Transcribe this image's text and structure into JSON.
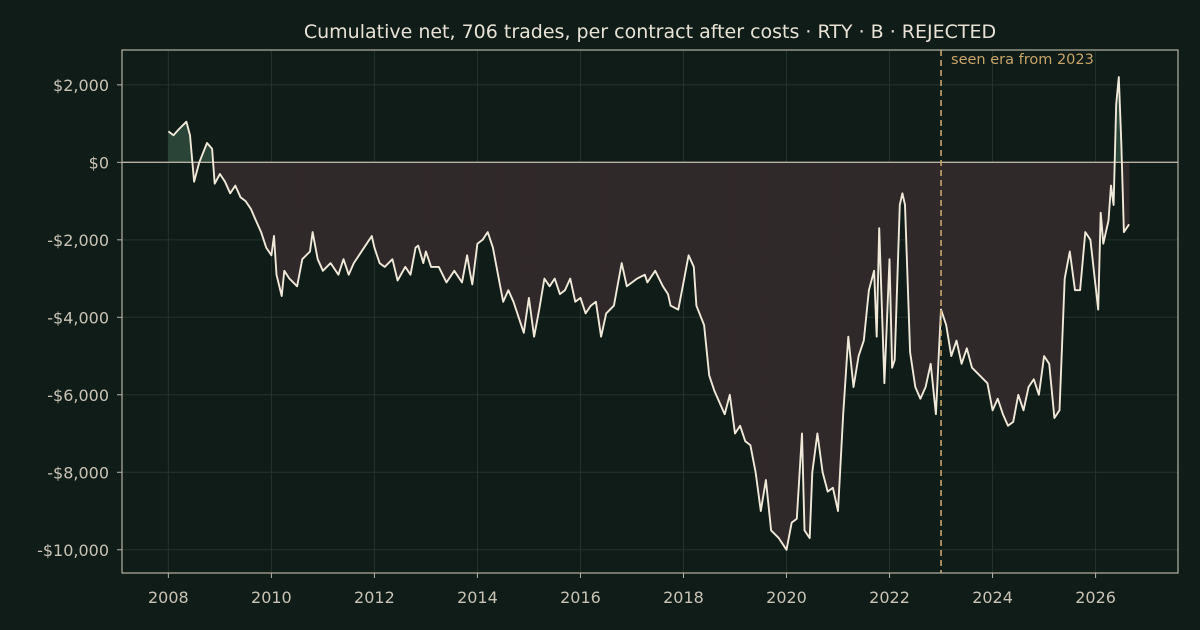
{
  "chart_data": {
    "type": "line",
    "title": "Cumulative net, 706 trades, per contract after costs  ·  RTY · B · REJECTED",
    "xlabel": "",
    "ylabel": "",
    "xlim": [
      2007.1,
      2027.6
    ],
    "ylim": [
      -10600,
      2900
    ],
    "x_ticks": [
      2008,
      2010,
      2012,
      2014,
      2016,
      2018,
      2020,
      2022,
      2024,
      2026
    ],
    "x_tick_labels": [
      "2008",
      "2010",
      "2012",
      "2014",
      "2016",
      "2018",
      "2020",
      "2022",
      "2024",
      "2026"
    ],
    "y_ticks": [
      2000,
      0,
      -2000,
      -4000,
      -6000,
      -8000,
      -10000
    ],
    "y_tick_labels": [
      "$2,000",
      "$0",
      "-$2,000",
      "-$4,000",
      "-$6,000",
      "-$8,000",
      "-$10,000"
    ],
    "grid": true,
    "baseline": 0,
    "annotation": {
      "x": 2023.0,
      "text": "seen era from 2023"
    },
    "colors": {
      "background": "#0f1c17",
      "line": "#f0e8d8",
      "fill_positive": "#2a4438",
      "fill_negative": "#30292a",
      "grid": "#25332c",
      "axis": "#b8b2a5",
      "annotation": "#c8a36a"
    },
    "series": [
      {
        "values": [
          [
            2008.0,
            800
          ],
          [
            2008.1,
            700
          ],
          [
            2008.2,
            850
          ],
          [
            2008.35,
            1050
          ],
          [
            2008.42,
            700
          ],
          [
            2008.5,
            -500
          ],
          [
            2008.6,
            0
          ],
          [
            2008.75,
            500
          ],
          [
            2008.85,
            350
          ],
          [
            2008.9,
            -550
          ],
          [
            2009.0,
            -300
          ],
          [
            2009.1,
            -500
          ],
          [
            2009.2,
            -800
          ],
          [
            2009.3,
            -600
          ],
          [
            2009.4,
            -900
          ],
          [
            2009.5,
            -1000
          ],
          [
            2009.6,
            -1200
          ],
          [
            2009.7,
            -1500
          ],
          [
            2009.8,
            -1800
          ],
          [
            2009.9,
            -2200
          ],
          [
            2010.0,
            -2400
          ],
          [
            2010.05,
            -1900
          ],
          [
            2010.1,
            -2900
          ],
          [
            2010.2,
            -3450
          ],
          [
            2010.25,
            -2800
          ],
          [
            2010.35,
            -3000
          ],
          [
            2010.5,
            -3200
          ],
          [
            2010.6,
            -2500
          ],
          [
            2010.75,
            -2300
          ],
          [
            2010.8,
            -1800
          ],
          [
            2010.9,
            -2500
          ],
          [
            2011.0,
            -2800
          ],
          [
            2011.15,
            -2600
          ],
          [
            2011.3,
            -2900
          ],
          [
            2011.4,
            -2500
          ],
          [
            2011.5,
            -2900
          ],
          [
            2011.6,
            -2600
          ],
          [
            2011.7,
            -2400
          ],
          [
            2011.85,
            -2100
          ],
          [
            2011.95,
            -1900
          ],
          [
            2012.0,
            -2200
          ],
          [
            2012.1,
            -2600
          ],
          [
            2012.2,
            -2700
          ],
          [
            2012.35,
            -2500
          ],
          [
            2012.45,
            -3050
          ],
          [
            2012.6,
            -2700
          ],
          [
            2012.7,
            -2900
          ],
          [
            2012.8,
            -2200
          ],
          [
            2012.85,
            -2150
          ],
          [
            2012.95,
            -2600
          ],
          [
            2013.0,
            -2300
          ],
          [
            2013.1,
            -2700
          ],
          [
            2013.25,
            -2700
          ],
          [
            2013.4,
            -3100
          ],
          [
            2013.55,
            -2800
          ],
          [
            2013.7,
            -3100
          ],
          [
            2013.8,
            -2400
          ],
          [
            2013.85,
            -2800
          ],
          [
            2013.9,
            -3150
          ],
          [
            2014.0,
            -2100
          ],
          [
            2014.1,
            -2000
          ],
          [
            2014.2,
            -1800
          ],
          [
            2014.3,
            -2200
          ],
          [
            2014.4,
            -2900
          ],
          [
            2014.5,
            -3600
          ],
          [
            2014.6,
            -3300
          ],
          [
            2014.7,
            -3600
          ],
          [
            2014.85,
            -4200
          ],
          [
            2014.9,
            -4400
          ],
          [
            2015.0,
            -3500
          ],
          [
            2015.1,
            -4500
          ],
          [
            2015.2,
            -3800
          ],
          [
            2015.3,
            -3000
          ],
          [
            2015.4,
            -3200
          ],
          [
            2015.5,
            -3000
          ],
          [
            2015.6,
            -3400
          ],
          [
            2015.7,
            -3300
          ],
          [
            2015.8,
            -3000
          ],
          [
            2015.9,
            -3600
          ],
          [
            2016.0,
            -3500
          ],
          [
            2016.1,
            -3900
          ],
          [
            2016.2,
            -3700
          ],
          [
            2016.3,
            -3600
          ],
          [
            2016.4,
            -4500
          ],
          [
            2016.5,
            -3900
          ],
          [
            2016.65,
            -3700
          ],
          [
            2016.8,
            -2600
          ],
          [
            2016.9,
            -3200
          ],
          [
            2017.1,
            -3000
          ],
          [
            2017.25,
            -2900
          ],
          [
            2017.3,
            -3100
          ],
          [
            2017.45,
            -2800
          ],
          [
            2017.6,
            -3200
          ],
          [
            2017.7,
            -3400
          ],
          [
            2017.75,
            -3700
          ],
          [
            2017.9,
            -3800
          ],
          [
            2018.0,
            -3100
          ],
          [
            2018.1,
            -2400
          ],
          [
            2018.2,
            -2700
          ],
          [
            2018.25,
            -3700
          ],
          [
            2018.4,
            -4200
          ],
          [
            2018.5,
            -5500
          ],
          [
            2018.6,
            -5900
          ],
          [
            2018.8,
            -6500
          ],
          [
            2018.9,
            -6000
          ],
          [
            2019.0,
            -7000
          ],
          [
            2019.1,
            -6800
          ],
          [
            2019.2,
            -7200
          ],
          [
            2019.3,
            -7300
          ],
          [
            2019.4,
            -8000
          ],
          [
            2019.5,
            -9000
          ],
          [
            2019.6,
            -8200
          ],
          [
            2019.7,
            -9500
          ],
          [
            2019.85,
            -9700
          ],
          [
            2020.0,
            -10000
          ],
          [
            2020.1,
            -9300
          ],
          [
            2020.2,
            -9200
          ],
          [
            2020.3,
            -7000
          ],
          [
            2020.35,
            -9500
          ],
          [
            2020.45,
            -9700
          ],
          [
            2020.5,
            -8000
          ],
          [
            2020.6,
            -7000
          ],
          [
            2020.7,
            -8000
          ],
          [
            2020.8,
            -8500
          ],
          [
            2020.9,
            -8400
          ],
          [
            2021.0,
            -9000
          ],
          [
            2021.1,
            -6500
          ],
          [
            2021.2,
            -4500
          ],
          [
            2021.3,
            -5800
          ],
          [
            2021.4,
            -5000
          ],
          [
            2021.5,
            -4600
          ],
          [
            2021.6,
            -3300
          ],
          [
            2021.7,
            -2800
          ],
          [
            2021.75,
            -4500
          ],
          [
            2021.8,
            -1700
          ],
          [
            2021.9,
            -5700
          ],
          [
            2022.0,
            -2500
          ],
          [
            2022.05,
            -5300
          ],
          [
            2022.1,
            -5100
          ],
          [
            2022.2,
            -1100
          ],
          [
            2022.25,
            -800
          ],
          [
            2022.3,
            -1100
          ],
          [
            2022.4,
            -4900
          ],
          [
            2022.5,
            -5800
          ],
          [
            2022.6,
            -6100
          ],
          [
            2022.7,
            -5800
          ],
          [
            2022.8,
            -5200
          ],
          [
            2022.9,
            -6500
          ],
          [
            2023.0,
            -3800
          ],
          [
            2023.1,
            -4200
          ],
          [
            2023.2,
            -5000
          ],
          [
            2023.3,
            -4600
          ],
          [
            2023.4,
            -5200
          ],
          [
            2023.5,
            -4800
          ],
          [
            2023.6,
            -5300
          ],
          [
            2023.75,
            -5500
          ],
          [
            2023.9,
            -5700
          ],
          [
            2024.0,
            -6400
          ],
          [
            2024.1,
            -6100
          ],
          [
            2024.2,
            -6500
          ],
          [
            2024.3,
            -6800
          ],
          [
            2024.4,
            -6700
          ],
          [
            2024.5,
            -6000
          ],
          [
            2024.6,
            -6400
          ],
          [
            2024.7,
            -5800
          ],
          [
            2024.8,
            -5600
          ],
          [
            2024.9,
            -6000
          ],
          [
            2025.0,
            -5000
          ],
          [
            2025.1,
            -5200
          ],
          [
            2025.2,
            -6600
          ],
          [
            2025.3,
            -6400
          ],
          [
            2025.4,
            -3000
          ],
          [
            2025.5,
            -2300
          ],
          [
            2025.6,
            -3300
          ],
          [
            2025.7,
            -3300
          ],
          [
            2025.8,
            -1800
          ],
          [
            2025.9,
            -2000
          ],
          [
            2026.0,
            -3200
          ],
          [
            2026.05,
            -3800
          ],
          [
            2026.1,
            -1300
          ],
          [
            2026.15,
            -2100
          ],
          [
            2026.25,
            -1500
          ],
          [
            2026.3,
            -600
          ],
          [
            2026.35,
            -1100
          ],
          [
            2026.4,
            1500
          ],
          [
            2026.45,
            2200
          ],
          [
            2026.5,
            500
          ],
          [
            2026.55,
            -1800
          ],
          [
            2026.65,
            -1600
          ]
        ]
      }
    ]
  }
}
